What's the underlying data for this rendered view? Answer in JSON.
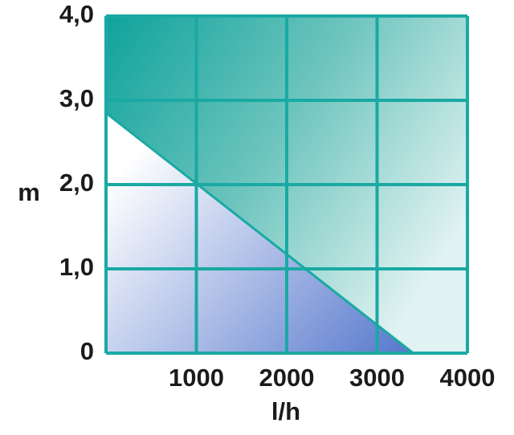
{
  "chart_data": {
    "type": "line",
    "x_label": "l/h",
    "y_label": "m",
    "x": [
      0,
      3400
    ],
    "series": [
      {
        "color": "#1aa9a3",
        "values": [
          2.85,
          0
        ]
      }
    ],
    "xlim": [
      0,
      4000
    ],
    "xticks": [
      1000,
      2000,
      3000,
      4000
    ],
    "ylim": [
      0,
      4
    ],
    "yticks": [
      {
        "value": 0,
        "label": "0"
      },
      {
        "value": 1,
        "label": "1,0"
      },
      {
        "value": 2,
        "label": "2,0"
      },
      {
        "value": 3,
        "label": "3,0"
      },
      {
        "value": 4,
        "label": "4,0"
      }
    ],
    "grid": true
  }
}
